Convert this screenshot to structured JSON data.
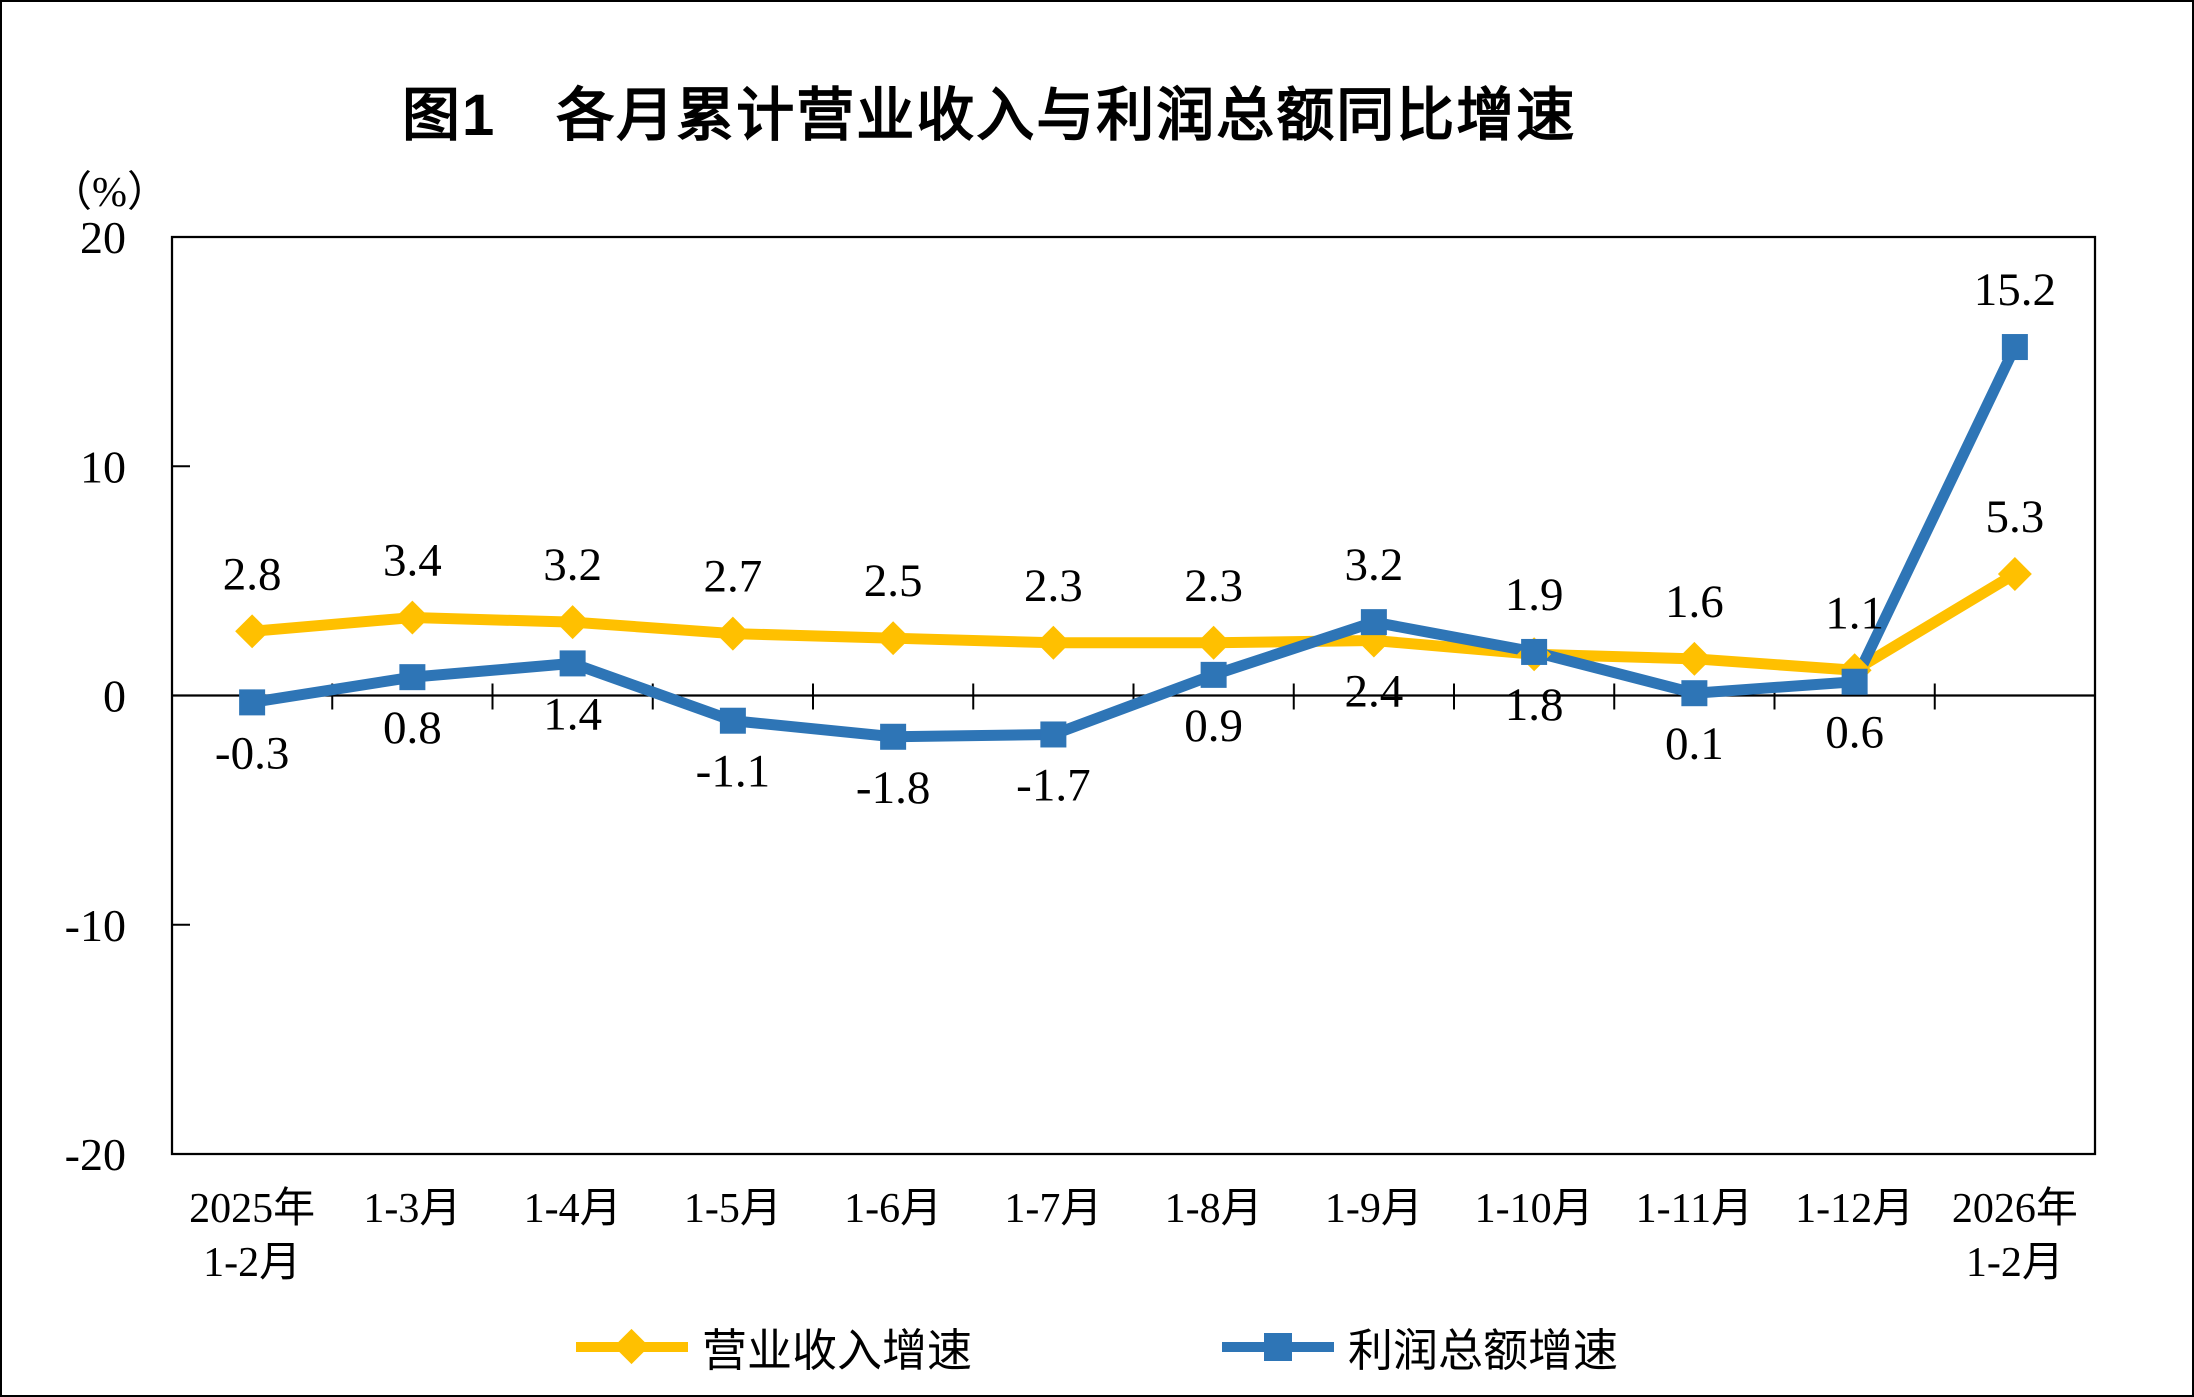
{
  "chart_data": {
    "type": "line",
    "title": "图1　各月累计营业收入与利润总额同比增速",
    "ylabel": "（%）",
    "ylim": [
      -20,
      20
    ],
    "yticks": [
      20,
      10,
      0,
      -10,
      -20
    ],
    "grid": false,
    "legend_position": "bottom",
    "categories": [
      "2025年\n1-2月",
      "1-3月",
      "1-4月",
      "1-5月",
      "1-6月",
      "1-7月",
      "1-8月",
      "1-9月",
      "1-10月",
      "1-11月",
      "1-12月",
      "2026年\n1-2月"
    ],
    "series": [
      {
        "name": "营业收入增速",
        "color": "#FFC000",
        "marker": "diamond",
        "values": [
          2.8,
          3.4,
          3.2,
          2.7,
          2.5,
          2.3,
          2.3,
          2.4,
          1.8,
          1.6,
          1.1,
          5.3
        ],
        "label_side": [
          "above",
          "above",
          "above",
          "above",
          "above",
          "above",
          "above",
          "below",
          "below",
          "above",
          "above",
          "above"
        ]
      },
      {
        "name": "利润总额增速",
        "color": "#2E75B6",
        "marker": "square",
        "values": [
          -0.3,
          0.8,
          1.4,
          -1.1,
          -1.8,
          -1.7,
          0.9,
          3.2,
          1.9,
          0.1,
          0.6,
          15.2
        ],
        "label_side": [
          "below",
          "below",
          "below",
          "below",
          "below",
          "below",
          "below",
          "above",
          "above",
          "below",
          "below",
          "above"
        ]
      }
    ]
  }
}
